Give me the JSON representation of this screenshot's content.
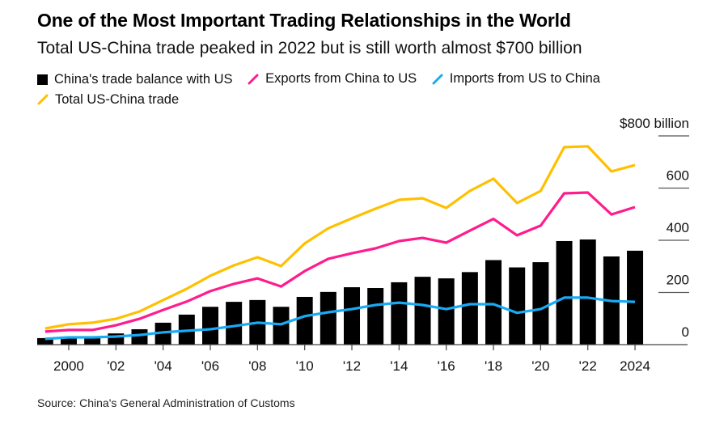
{
  "header": {
    "title": "One of the Most Important Trading Relationships in the World",
    "subtitle": "Total US-China trade peaked in 2022 but is still worth almost $700 billion"
  },
  "legend": [
    {
      "label": "China's trade balance with US",
      "kind": "bar",
      "color": "#000000"
    },
    {
      "label": "Exports from China to US",
      "kind": "line",
      "color": "#ff1c8d"
    },
    {
      "label": "Imports from US to China",
      "kind": "line",
      "color": "#19aaf5"
    },
    {
      "label": "Total US-China trade",
      "kind": "line",
      "color": "#ffc000"
    }
  ],
  "source": "Source: China's General Administration of Customs",
  "chart_data": {
    "type": "bar+line",
    "title": "One of the Most Important Trading Relationships in the World",
    "subtitle": "Total US-China trade peaked in 2022 but is still worth almost $700 billion",
    "xlabel": "",
    "ylabel": "$ billion",
    "unit_label": "$800 billion",
    "ylim": [
      0,
      800
    ],
    "yticks": [
      0,
      200,
      400,
      600,
      800
    ],
    "ytick_labels": [
      "0",
      "200",
      "400",
      "600",
      "$800 billion"
    ],
    "y_axis_side": "right",
    "grid": true,
    "legend_position": "top-left",
    "x": [
      1999,
      2000,
      2001,
      2002,
      2003,
      2004,
      2005,
      2006,
      2007,
      2008,
      2009,
      2010,
      2011,
      2012,
      2013,
      2014,
      2015,
      2016,
      2017,
      2018,
      2019,
      2020,
      2021,
      2022,
      2023,
      2024
    ],
    "xticks": [
      2000,
      2002,
      2004,
      2006,
      2008,
      2010,
      2012,
      2014,
      2016,
      2018,
      2020,
      2022,
      2024
    ],
    "xtick_labels": [
      "2000",
      "'02",
      "'04",
      "'06",
      "'08",
      "'10",
      "'12",
      "'14",
      "'16",
      "'18",
      "'20",
      "'22",
      "2024"
    ],
    "series": [
      {
        "name": "China's trade balance with US",
        "type": "bar",
        "color": "#000000",
        "values": [
          25,
          31,
          25,
          43,
          59,
          84,
          115,
          145,
          164,
          171,
          145,
          183,
          202,
          220,
          217,
          239,
          260,
          254,
          278,
          324,
          296,
          316,
          397,
          403,
          338,
          360
        ]
      },
      {
        "name": "Exports from China to US",
        "type": "line",
        "color": "#ff1c8d",
        "values": [
          50,
          56,
          56,
          74,
          99,
          133,
          165,
          205,
          233,
          254,
          223,
          282,
          329,
          350,
          369,
          397,
          409,
          391,
          437,
          482,
          419,
          456,
          580,
          583,
          499,
          527
        ]
      },
      {
        "name": "Imports from US to China",
        "type": "line",
        "color": "#19aaf5",
        "values": [
          22,
          28,
          28,
          31,
          37,
          47,
          53,
          59,
          71,
          84,
          78,
          109,
          124,
          136,
          152,
          161,
          152,
          136,
          155,
          155,
          122,
          136,
          180,
          180,
          167,
          164
        ]
      },
      {
        "name": "Total US-China trade",
        "type": "line",
        "color": "#ffc000",
        "values": [
          62,
          78,
          84,
          99,
          127,
          171,
          214,
          264,
          304,
          335,
          301,
          388,
          446,
          484,
          521,
          555,
          561,
          524,
          589,
          636,
          543,
          589,
          757,
          760,
          664,
          688
        ]
      }
    ]
  }
}
